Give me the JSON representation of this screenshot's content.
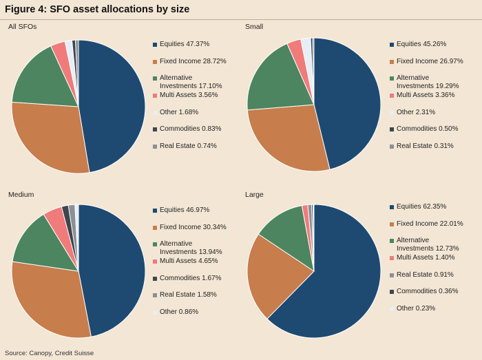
{
  "header": {
    "title": "Figure 4: SFO asset allocations by size"
  },
  "footer": {
    "source": "Source: Canopy, Credit Suisse"
  },
  "colors": {
    "Equities": "#1e4a72",
    "Fixed Income": "#c77d4c",
    "Alternative Investments": "#4c8560",
    "Multi Assets": "#ef7b7b",
    "Other": "#e8eef5",
    "Commodities": "#3f4650",
    "Real Estate": "#8b8f96"
  },
  "chart_data": [
    {
      "type": "pie",
      "title": "All SFOs",
      "slices": [
        {
          "label": "Equities",
          "value": 47.37,
          "text": "Equities 47.37%"
        },
        {
          "label": "Fixed Income",
          "value": 28.72,
          "text": "Fixed Income 28.72%"
        },
        {
          "label": "Alternative Investments",
          "value": 17.1,
          "text": "Alternative\nInvestments 17.10%"
        },
        {
          "label": "Multi Assets",
          "value": 3.56,
          "text": "Multi Assets 3.56%"
        },
        {
          "label": "Other",
          "value": 1.68,
          "text": "Other 1.68%"
        },
        {
          "label": "Commodities",
          "value": 0.83,
          "text": "Commodities 0.83%"
        },
        {
          "label": "Real Estate",
          "value": 0.74,
          "text": "Real Estate 0.74%"
        }
      ]
    },
    {
      "type": "pie",
      "title": "Small",
      "slices": [
        {
          "label": "Equities",
          "value": 45.26,
          "text": "Equities 45.26%"
        },
        {
          "label": "Fixed Income",
          "value": 26.97,
          "text": "Fixed Income 26.97%"
        },
        {
          "label": "Alternative Investments",
          "value": 19.29,
          "text": "Alternative\nInvestments 19.29%"
        },
        {
          "label": "Multi Assets",
          "value": 3.36,
          "text": "Multi Assets 3.36%"
        },
        {
          "label": "Other",
          "value": 2.31,
          "text": "Other 2.31%"
        },
        {
          "label": "Commodities",
          "value": 0.5,
          "text": "Commodities 0.50%"
        },
        {
          "label": "Real Estate",
          "value": 0.31,
          "text": "Real Estate 0.31%"
        }
      ]
    },
    {
      "type": "pie",
      "title": "Medium",
      "slices": [
        {
          "label": "Equities",
          "value": 46.97,
          "text": "Equities 46.97%"
        },
        {
          "label": "Fixed Income",
          "value": 30.34,
          "text": "Fixed Income 30.34%"
        },
        {
          "label": "Alternative Investments",
          "value": 13.94,
          "text": "Alternative\nInvestments 13.94%"
        },
        {
          "label": "Multi Assets",
          "value": 4.65,
          "text": "Multi Assets 4.65%"
        },
        {
          "label": "Commodities",
          "value": 1.67,
          "text": "Commodities 1.67%"
        },
        {
          "label": "Real Estate",
          "value": 1.58,
          "text": "Real Estate 1.58%"
        },
        {
          "label": "Other",
          "value": 0.86,
          "text": "Other 0.86%"
        }
      ]
    },
    {
      "type": "pie",
      "title": "Large",
      "slices": [
        {
          "label": "Equities",
          "value": 62.35,
          "text": "Equities 62.35%"
        },
        {
          "label": "Fixed Income",
          "value": 22.01,
          "text": "Fixed Income 22.01%"
        },
        {
          "label": "Alternative Investments",
          "value": 12.73,
          "text": "Alternative\nInvestments 12.73%"
        },
        {
          "label": "Multi Assets",
          "value": 1.4,
          "text": "Multi Assets 1.40%"
        },
        {
          "label": "Real Estate",
          "value": 0.91,
          "text": "Real Estate 0.91%"
        },
        {
          "label": "Commodities",
          "value": 0.36,
          "text": "Commodities 0.36%"
        },
        {
          "label": "Other",
          "value": 0.23,
          "text": "Other 0.23%"
        }
      ]
    }
  ]
}
